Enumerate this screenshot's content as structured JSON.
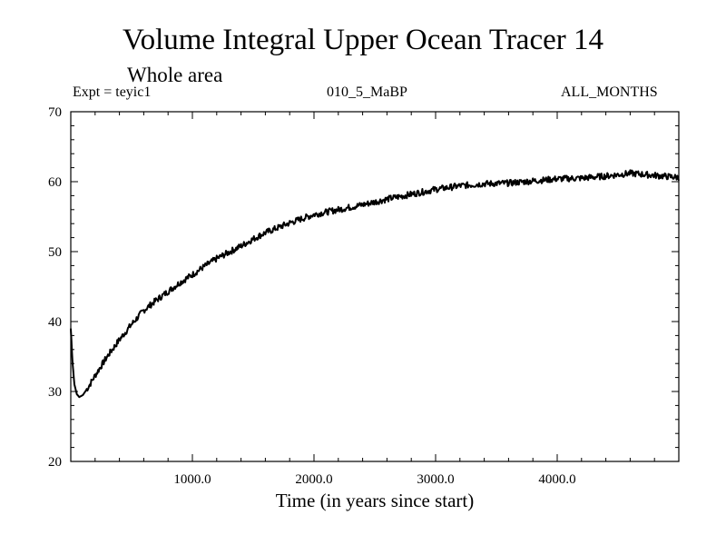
{
  "header": {
    "title": "Volume Integral Upper Ocean Tracer 14",
    "subtitle": "Whole area",
    "expt_label": "Expt = teyic1",
    "run_label": "010_5_MaBP",
    "months_label": "ALL_MONTHS"
  },
  "chart_data": {
    "type": "line",
    "title": "Volume Integral Upper Ocean Tracer 14",
    "subtitle": "Whole area",
    "xlabel": "Time (in years since start)",
    "ylabel": "",
    "xlim": [
      0,
      5000
    ],
    "ylim": [
      20,
      70
    ],
    "x_ticks": [
      1000,
      2000,
      3000,
      4000
    ],
    "x_tick_labels": [
      "1000.0",
      "2000.0",
      "3000.0",
      "4000.0"
    ],
    "y_ticks": [
      20,
      30,
      40,
      50,
      60,
      70
    ],
    "y_tick_labels": [
      "20",
      "30",
      "40",
      "50",
      "60",
      "70"
    ],
    "grid": false,
    "series": [
      {
        "name": "Tracer 14",
        "x": [
          0,
          15,
          30,
          50,
          70,
          100,
          150,
          200,
          300,
          400,
          500,
          600,
          700,
          800,
          900,
          1000,
          1100,
          1200,
          1300,
          1400,
          1500,
          1600,
          1700,
          1800,
          1900,
          2000,
          2200,
          2400,
          2600,
          2800,
          3000,
          3200,
          3400,
          3600,
          3800,
          4000,
          4200,
          4400,
          4600,
          4800,
          5000
        ],
        "values": [
          39.0,
          34.0,
          31.0,
          29.6,
          29.2,
          29.5,
          30.8,
          32.3,
          35.0,
          37.4,
          39.6,
          41.6,
          43.0,
          44.3,
          45.6,
          46.7,
          47.9,
          49.0,
          49.9,
          50.8,
          51.8,
          52.7,
          53.4,
          54.1,
          54.7,
          55.3,
          56.0,
          56.7,
          57.5,
          58.2,
          58.9,
          59.4,
          59.7,
          59.8,
          60.1,
          60.4,
          60.5,
          60.8,
          61.2,
          60.9,
          60.6
        ]
      }
    ]
  }
}
